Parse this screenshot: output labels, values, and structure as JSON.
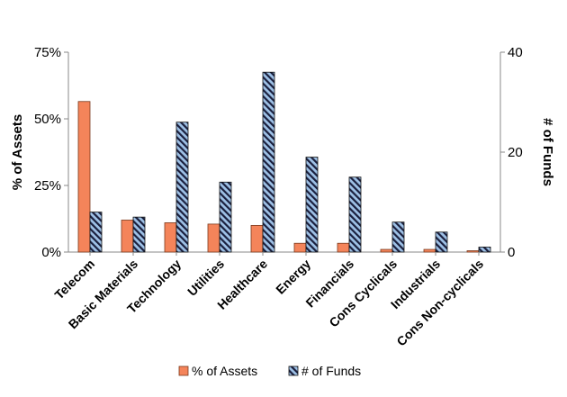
{
  "chart_data": {
    "type": "bar",
    "title": "",
    "categories": [
      "Telecom",
      "Basic Materials",
      "Technology",
      "Utilities",
      "Healthcare",
      "Energy",
      "Financials",
      "Cons Cyclicals",
      "Industrials",
      "Cons Non-cyclicals"
    ],
    "series": [
      {
        "name": "% of Assets",
        "axis": "left",
        "color": "#f4845a",
        "values": [
          56.5,
          12.0,
          11.0,
          10.5,
          10.0,
          3.3,
          3.3,
          1.0,
          1.0,
          0.5
        ]
      },
      {
        "name": "# of Funds",
        "axis": "right",
        "color": "#9ec1e6",
        "pattern": "diagonal-hatch",
        "values": [
          8,
          7,
          26,
          14,
          36,
          19,
          15,
          6,
          4,
          1
        ]
      }
    ],
    "y_left": {
      "label": "% of Assets",
      "range": [
        0,
        75
      ],
      "ticks": [
        {
          "value": 0,
          "label": "0%"
        },
        {
          "value": 25,
          "label": "25%"
        },
        {
          "value": 50,
          "label": "50%"
        },
        {
          "value": 75,
          "label": "75%"
        }
      ]
    },
    "y_right": {
      "label": "# of Funds",
      "range": [
        0,
        40
      ],
      "ticks": [
        {
          "value": 0,
          "label": "0"
        },
        {
          "value": 20,
          "label": "20"
        },
        {
          "value": 40,
          "label": "40"
        }
      ]
    },
    "grid": false,
    "legend": "bottom"
  }
}
